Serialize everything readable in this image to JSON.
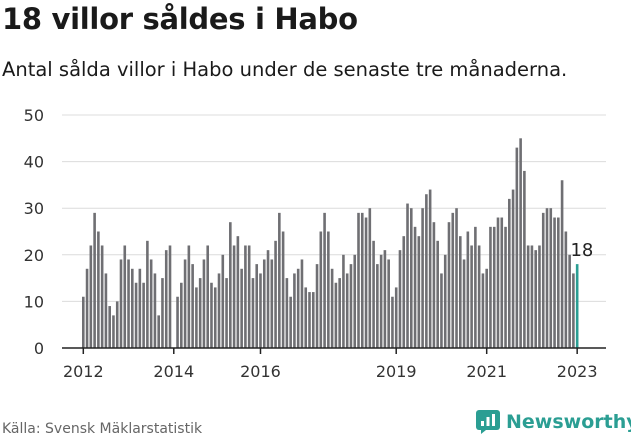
{
  "title": "18 villor såldes i Habo",
  "subtitle": "Antal sålda villor i Habo under de senaste tre månaderna.",
  "source": "Källa: Svensk Mäklarstatistik",
  "brand": {
    "name": "Newsworthy",
    "icon": "newsworthy-logo-icon",
    "color": "#2b9e93"
  },
  "chart_data": {
    "type": "bar",
    "title": "",
    "xlabel": "",
    "ylabel": "",
    "ylim": [
      0,
      50
    ],
    "y_ticks": [
      0,
      10,
      20,
      30,
      40,
      50
    ],
    "x_ticks": [
      "2012",
      "2014",
      "2016",
      "2019",
      "2021",
      "2023"
    ],
    "grid": true,
    "bar_color": "#6f6f73",
    "highlight_color": "#2b9e93",
    "highlight_label": "18",
    "values": [
      11,
      17,
      22,
      29,
      25,
      22,
      16,
      9,
      7,
      10,
      19,
      22,
      19,
      17,
      14,
      17,
      14,
      23,
      19,
      16,
      7,
      15,
      21,
      22,
      0,
      11,
      14,
      19,
      22,
      18,
      13,
      15,
      19,
      22,
      14,
      13,
      16,
      20,
      15,
      27,
      22,
      24,
      17,
      22,
      22,
      15,
      18,
      16,
      19,
      21,
      19,
      23,
      29,
      25,
      15,
      11,
      16,
      17,
      19,
      13,
      12,
      12,
      18,
      25,
      29,
      25,
      17,
      14,
      15,
      20,
      16,
      18,
      20,
      29,
      29,
      28,
      30,
      23,
      18,
      20,
      21,
      19,
      11,
      13,
      21,
      24,
      31,
      30,
      26,
      24,
      30,
      33,
      34,
      27,
      23,
      16,
      20,
      27,
      29,
      30,
      24,
      19,
      25,
      22,
      26,
      22,
      16,
      17,
      26,
      26,
      28,
      28,
      26,
      32,
      34,
      43,
      45,
      38,
      22,
      22,
      21,
      22,
      29,
      30,
      30,
      28,
      28,
      36,
      25,
      20,
      16,
      18
    ],
    "annotations": [
      {
        "label": "18",
        "category_index": 131
      }
    ]
  }
}
